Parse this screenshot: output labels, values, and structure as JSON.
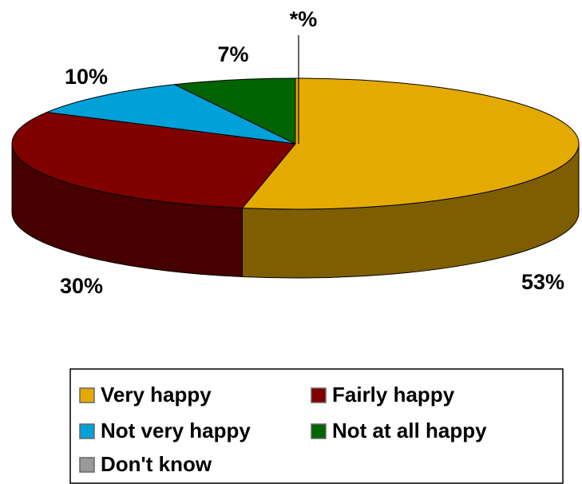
{
  "chart_data": {
    "type": "pie",
    "categories": [
      "Very happy",
      "Fairly happy",
      "Not very happy",
      "Not at all happy",
      "Don't know"
    ],
    "values": [
      53,
      30,
      10,
      7,
      0
    ],
    "value_labels": [
      "53%",
      "30%",
      "10%",
      "7%",
      "*%"
    ],
    "colors": [
      "#e5aa00",
      "#800000",
      "#00a0d8",
      "#006400",
      "#999999"
    ],
    "legend": "bottom"
  }
}
